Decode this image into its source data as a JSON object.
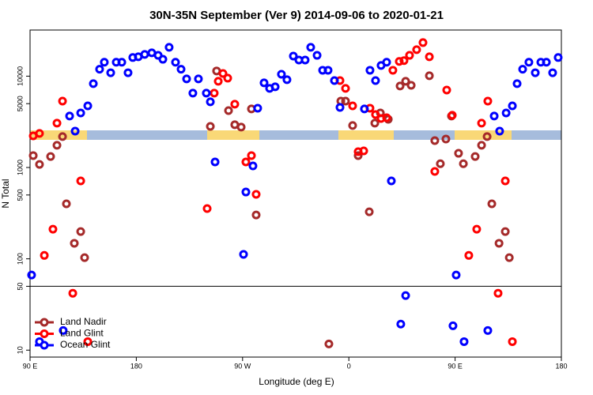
{
  "chart_data": {
    "type": "scatter",
    "title": "30N-35N September (Ver 9)   2014-09-06 to 2020-01-21",
    "x_label": "Longitude (deg E)",
    "y_label": "N Total",
    "xlim": [
      90,
      540
    ],
    "xticks": [
      {
        "value": 90,
        "label": "90 E"
      },
      {
        "value": 180,
        "label": "180"
      },
      {
        "value": 270,
        "label": "90 W"
      },
      {
        "value": 360,
        "label": "0"
      },
      {
        "value": 450,
        "label": "90 E"
      },
      {
        "value": 540,
        "label": "180"
      }
    ],
    "ylim": [
      8.4,
      32000
    ],
    "yticks": [
      10,
      50,
      100,
      500,
      1000,
      5000,
      10000
    ],
    "log_y": true,
    "hline": 50,
    "legend": "bottom-left",
    "series": [
      {
        "name": "Land Nadir",
        "color": "#a52a2a",
        "x": [
          92.7,
          98,
          107.4,
          112.8,
          117.5,
          120.8,
          127.5,
          132.9,
          136.2,
          242.7,
          248,
          258.1,
          263.4,
          268.8,
          277.5,
          281.5,
          343.1,
          353.2,
          357.2,
          363.2,
          367.9,
          377.3,
          382,
          386.7,
          393.4,
          403.4,
          408.1,
          412.8,
          428.2,
          432.8,
          437.5,
          442.2,
          446.9,
          452.9,
          457,
          467,
          472.4,
          477.1,
          481.1,
          487.2,
          492.5,
          495.9
        ],
        "values": [
          1350,
          1080,
          1320,
          1750,
          2180,
          400,
          148,
          199,
          103,
          2820,
          11400,
          4200,
          2940,
          2770,
          4380,
          302,
          11.7,
          5330,
          5330,
          2880,
          1350,
          327,
          3060,
          3950,
          3370,
          7800,
          8790,
          7940,
          10100,
          1970,
          1100,
          2050,
          3660,
          1430,
          1100,
          1320,
          1750,
          2180,
          400,
          148,
          199,
          103
        ]
      },
      {
        "name": "Land Glint",
        "color": "#ff0000",
        "x": [
          92.7,
          98,
          102.1,
          109.4,
          112.8,
          117.5,
          126.2,
          132.9,
          138.9,
          240,
          246,
          249.4,
          253.4,
          257.4,
          263.4,
          272.8,
          277.5,
          281.5,
          352.5,
          357.2,
          363.2,
          367.9,
          372.6,
          377.9,
          382.6,
          387.3,
          392,
          397.3,
          402.7,
          406.7,
          411.4,
          417.4,
          422.8,
          428.2,
          432.8,
          442.9,
          447.6,
          461.6,
          468.3,
          472.4,
          477.7,
          486.4,
          492.5,
          498.5
        ],
        "values": [
          2220,
          2360,
          109,
          211,
          3060,
          5330,
          42,
          713,
          12.4,
          355,
          6520,
          8790,
          10700,
          9510,
          4930,
          1150,
          1350,
          508,
          8950,
          7350,
          4730,
          1490,
          1520,
          4460,
          3800,
          3440,
          3510,
          11600,
          14500,
          14800,
          16900,
          19500,
          23300,
          16300,
          905,
          7050,
          3730,
          109,
          211,
          3060,
          5330,
          42,
          713,
          12.4
        ]
      },
      {
        "name": "Ocean Glint",
        "color": "#0000ff",
        "x": [
          91.3,
          98,
          118.1,
          123.5,
          128.2,
          132.9,
          138.9,
          143.6,
          148.9,
          152.9,
          158.3,
          163,
          167.7,
          173,
          177,
          181.7,
          187.1,
          193.1,
          198.5,
          202.5,
          207.8,
          213.2,
          217.9,
          222.6,
          227.9,
          232.6,
          239.3,
          242.7,
          246.7,
          270.8,
          272.8,
          278.8,
          282.8,
          288.2,
          292.9,
          297.6,
          302.9,
          307.6,
          313,
          317.7,
          323,
          327.7,
          333.1,
          337.8,
          342.4,
          347.8,
          352.5,
          373.2,
          377.9,
          382.6,
          387.3,
          392,
          396,
          404,
          408.1,
          448.2,
          450.9,
          457.6,
          477.7,
          483.1,
          487.7,
          493.2,
          498.5,
          502.5,
          507.2,
          512.5,
          517.9,
          522.6,
          527.3,
          532.6,
          537.3
        ],
        "values": [
          66.5,
          12.4,
          16.4,
          3660,
          2500,
          3950,
          4730,
          8280,
          11900,
          14200,
          10900,
          14200,
          14200,
          10900,
          16000,
          16300,
          17300,
          18000,
          16900,
          15300,
          20700,
          14200,
          11900,
          9330,
          6520,
          9330,
          6520,
          5240,
          1150,
          112,
          539,
          1040,
          4460,
          8440,
          7350,
          7640,
          10500,
          9140,
          16600,
          15000,
          15000,
          20700,
          16900,
          11600,
          11600,
          8950,
          4550,
          4380,
          11600,
          8950,
          13100,
          14200,
          713,
          19.3,
          39.6,
          18.5,
          66.5,
          12.4,
          16.4,
          3660,
          2500,
          3950,
          4730,
          8280,
          11900,
          14200,
          10900,
          14200,
          14200,
          10900,
          16000
        ]
      }
    ]
  }
}
